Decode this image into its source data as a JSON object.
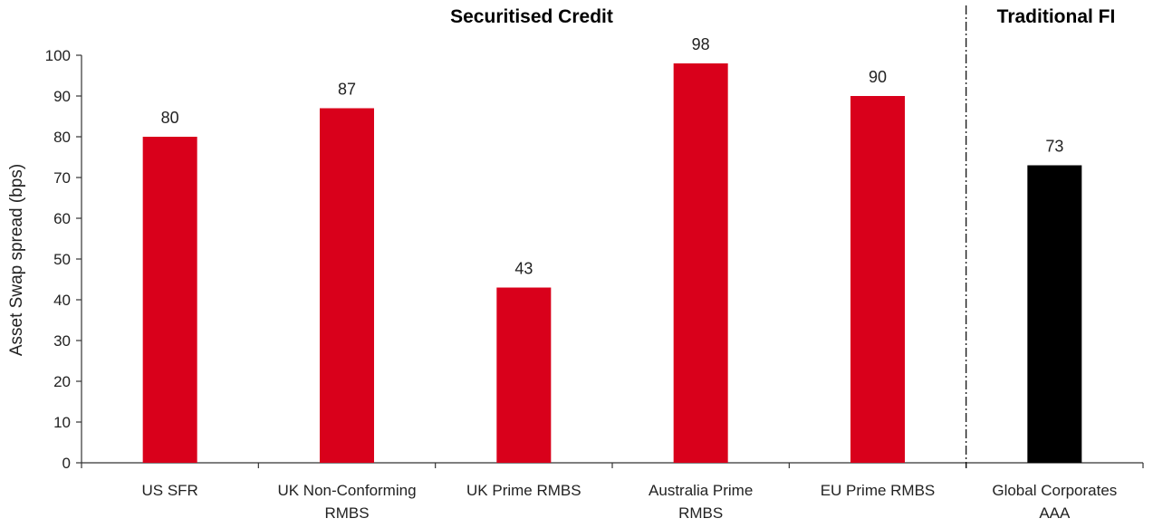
{
  "chart_data": {
    "type": "bar",
    "ylabel": "Asset Swap spread (bps)",
    "ylim": [
      0,
      100
    ],
    "yticks": [
      0,
      10,
      20,
      30,
      40,
      50,
      60,
      70,
      80,
      90,
      100
    ],
    "grid": false,
    "groups": [
      {
        "title": "Securitised Credit",
        "categories": [
          "US SFR",
          "UK Non-Conforming RMBS",
          "UK Prime RMBS",
          "Australia Prime RMBS",
          "EU Prime RMBS"
        ]
      },
      {
        "title": "Traditional FI",
        "categories": [
          "Global Corporates AAA"
        ]
      }
    ],
    "categories": [
      [
        "US SFR"
      ],
      [
        "UK Non-Conforming",
        "RMBS"
      ],
      [
        "UK Prime RMBS"
      ],
      [
        "Australia Prime",
        "RMBS"
      ],
      [
        "EU Prime RMBS"
      ],
      [
        "Global Corporates",
        "AAA"
      ]
    ],
    "values": [
      80,
      87,
      43,
      98,
      90,
      73
    ],
    "data_labels": [
      "80",
      "87",
      "43",
      "98",
      "90",
      "73"
    ],
    "colors": [
      "#d9001b",
      "#d9001b",
      "#d9001b",
      "#d9001b",
      "#d9001b",
      "#000000"
    ]
  }
}
